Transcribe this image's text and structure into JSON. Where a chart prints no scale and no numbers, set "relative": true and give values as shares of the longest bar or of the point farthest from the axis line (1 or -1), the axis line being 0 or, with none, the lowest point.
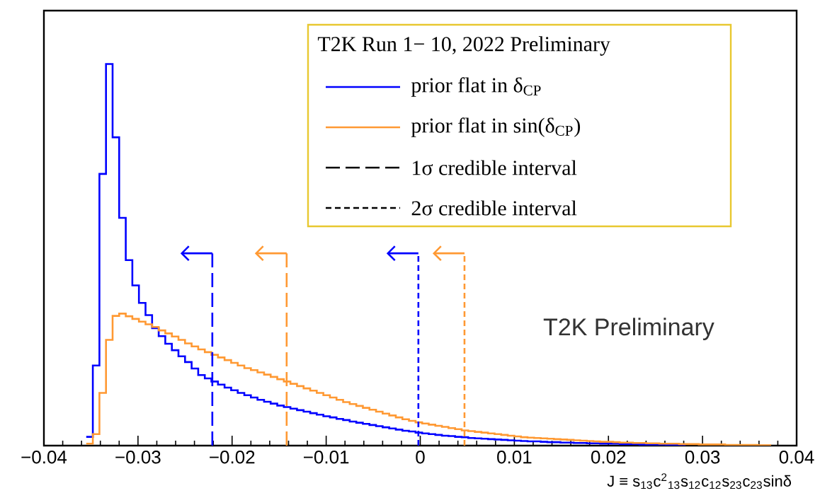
{
  "chart_data": {
    "type": "step",
    "relative": true,
    "legend_title": "T2K Run 1− 10, 2022 Preliminary",
    "xlabel": "J ≡ s$_{13}$c$^{2}$$_{13}$s$_{12}$c$_{12}$s$_{23}$c$_{23}$sinδ",
    "annotations": [
      "T2K Preliminary",
      "1σ credible interval",
      "2σ credible interval"
    ],
    "xlim": [
      -0.04,
      0.04
    ],
    "xticks": [
      {
        "value": -0.04,
        "label": "−0.04"
      },
      {
        "value": -0.03,
        "label": "−0.03"
      },
      {
        "value": -0.02,
        "label": "−0.02"
      },
      {
        "value": -0.01,
        "label": "−0.01"
      },
      {
        "value": 0,
        "label": "0"
      },
      {
        "value": 0.01,
        "label": "0.01"
      },
      {
        "value": 0.02,
        "label": "0.02"
      },
      {
        "value": 0.03,
        "label": "0.03"
      },
      {
        "value": 0.04,
        "label": "0.04"
      }
    ],
    "legend": "top right",
    "x": [
      -0.0355,
      -0.0348,
      -0.0341,
      -0.0334,
      -0.0327,
      -0.032,
      -0.0313,
      -0.0306,
      -0.0299,
      -0.0292,
      -0.0285,
      -0.0278,
      -0.0271,
      -0.0264,
      -0.0257,
      -0.025,
      -0.0243,
      -0.0236,
      -0.0229,
      -0.0222,
      -0.0215,
      -0.0208,
      -0.0201,
      -0.0194,
      -0.0187,
      -0.018,
      -0.0173,
      -0.0166,
      -0.0159,
      -0.0152,
      -0.0145,
      -0.0138,
      -0.0131,
      -0.0124,
      -0.0117,
      -0.011,
      -0.0103,
      -0.0096,
      -0.0089,
      -0.0082,
      -0.0075,
      -0.0068,
      -0.0061,
      -0.0054,
      -0.0047,
      -0.004,
      -0.0033,
      -0.0026,
      -0.0019,
      -0.0012,
      -0.0005,
      0.0002,
      0.0009,
      0.0016,
      0.0023,
      0.003,
      0.0037,
      0.0044,
      0.0051,
      0.0058,
      0.0065,
      0.0072,
      0.0079,
      0.0086,
      0.0093,
      0.01,
      0.0107,
      0.0114,
      0.0121,
      0.0128,
      0.0135,
      0.0142,
      0.0149,
      0.0156,
      0.0163,
      0.017,
      0.0177,
      0.0184,
      0.0191,
      0.0198,
      0.0205,
      0.0212,
      0.0219,
      0.0226,
      0.0233,
      0.024,
      0.0247,
      0.0254,
      0.0261,
      0.0268,
      0.0275,
      0.0282,
      0.0289,
      0.0296,
      0.0303,
      0.031,
      0.0317,
      0.0324,
      0.0331,
      0.0338,
      0.0345,
      0.0352,
      0.0359,
      0.0366,
      0.0373
    ],
    "series": [
      {
        "name": "prior flat in δ$_{CP}$",
        "color": "#0000ff",
        "values": [
          0.023,
          0.21,
          0.712,
          1.0,
          0.808,
          0.597,
          0.486,
          0.42,
          0.374,
          0.342,
          0.308,
          0.287,
          0.267,
          0.25,
          0.234,
          0.219,
          0.202,
          0.185,
          0.176,
          0.168,
          0.16,
          0.152,
          0.145,
          0.138,
          0.132,
          0.126,
          0.12,
          0.115,
          0.11,
          0.105,
          0.101,
          0.097,
          0.093,
          0.089,
          0.085,
          0.081,
          0.077,
          0.074,
          0.07,
          0.067,
          0.063,
          0.06,
          0.057,
          0.054,
          0.051,
          0.048,
          0.045,
          0.042,
          0.039,
          0.037,
          0.034,
          0.032,
          0.03,
          0.028,
          0.026,
          0.025,
          0.023,
          0.022,
          0.02,
          0.019,
          0.018,
          0.017,
          0.016,
          0.015,
          0.014,
          0.013,
          0.012,
          0.011,
          0.011,
          0.01,
          0.009,
          0.009,
          0.008,
          0.008,
          0.007,
          0.007,
          0.006,
          0.006,
          0.005,
          0.005,
          0.005,
          0.004,
          0.004,
          0.004,
          0.003,
          0.003,
          0.003,
          0.003,
          0.002,
          0.002,
          0.002,
          0.002,
          null,
          null,
          null,
          null,
          null,
          null,
          null,
          null,
          null,
          null,
          null,
          null,
          null
        ]
      },
      {
        "name": "prior flat in sin(δ$_{CP}$)",
        "color": "#ff9933",
        "values": [
          0.005,
          0.03,
          0.138,
          0.277,
          0.34,
          0.346,
          0.339,
          0.332,
          0.325,
          0.318,
          0.311,
          0.302,
          0.294,
          0.286,
          0.277,
          0.268,
          0.26,
          0.252,
          0.245,
          0.238,
          0.231,
          0.224,
          0.217,
          0.21,
          0.203,
          0.198,
          0.192,
          0.186,
          0.18,
          0.174,
          0.168,
          0.162,
          0.156,
          0.15,
          0.144,
          0.138,
          0.132,
          0.126,
          0.12,
          0.114,
          0.109,
          0.104,
          0.099,
          0.094,
          0.089,
          0.084,
          0.079,
          0.074,
          0.069,
          0.065,
          0.061,
          0.058,
          0.055,
          0.052,
          0.049,
          0.046,
          0.043,
          0.04,
          0.038,
          0.036,
          0.034,
          0.032,
          0.03,
          0.028,
          0.026,
          0.024,
          0.022,
          0.021,
          0.02,
          0.019,
          0.018,
          0.017,
          0.016,
          0.015,
          0.014,
          0.013,
          0.012,
          0.011,
          0.01,
          0.01,
          0.009,
          0.008,
          0.008,
          0.007,
          0.007,
          0.006,
          0.006,
          0.005,
          0.005,
          0.005,
          0.004,
          0.004,
          0.004,
          0.003,
          0.003,
          0.003,
          0.003,
          0.002,
          0.002,
          0.002,
          0.002,
          0.002,
          0.001,
          0.001,
          0.001
        ]
      }
    ],
    "ref_lines": [
      {
        "axis": "x",
        "value": -0.0221,
        "color": "#0000ff",
        "line_style": "dashed"
      },
      {
        "axis": "x",
        "value": -0.0142,
        "color": "#ff9933",
        "line_style": "dashed"
      },
      {
        "axis": "x",
        "value": -0.0002,
        "color": "#0000ff",
        "line_style": "dotted"
      },
      {
        "axis": "x",
        "value": 0.0047,
        "color": "#ff9933",
        "line_style": "dotted"
      }
    ]
  }
}
